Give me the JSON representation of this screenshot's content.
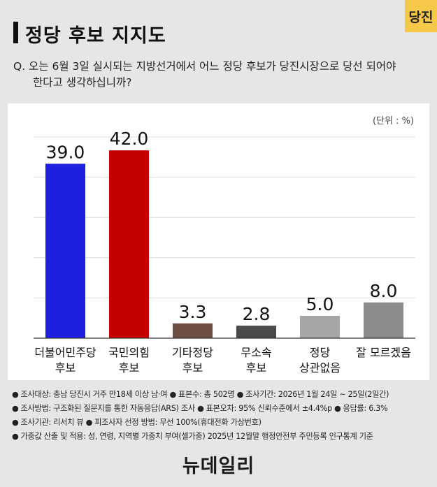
{
  "badge": "당진",
  "title": "정당 후보 지지도",
  "question": {
    "line1": "Q. 오는 6월 3일 실시되는 지방선거에서 어느 정당 후보가 당진시장으로 당선 되어야",
    "line2": "한다고 생각하십니까?"
  },
  "unit_label": "(단위 : %)",
  "chart_data": {
    "type": "bar",
    "categories": [
      [
        "더불어민주당",
        "후보"
      ],
      [
        "국민의힘",
        "후보"
      ],
      [
        "기타정당",
        "후보"
      ],
      [
        "무소속",
        "후보"
      ],
      [
        "정당",
        "상관없음"
      ],
      [
        "잘 모르겠음"
      ]
    ],
    "values": [
      39.0,
      42.0,
      3.3,
      2.8,
      5.0,
      8.0
    ],
    "value_labels": [
      "39.0",
      "42.0",
      "3.3",
      "2.8",
      "5.0",
      "8.0"
    ],
    "colors": [
      "#1f1fe0",
      "#c40000",
      "#6d4e44",
      "#4a4a4a",
      "#a6a6a6",
      "#8c8c8c"
    ],
    "ylim": [
      0,
      45
    ],
    "grid": true,
    "unit": "%"
  },
  "notes": [
    [
      "조사대상: 충남 당진시 거주 만18세 이상 남·여",
      "표본수: 총 502명",
      "조사기간: 2026년 1월 24일 ~ 25일(2일간)"
    ],
    [
      "조사방법: 구조화된 질문지를 통한 자동응답(ARS) 조사",
      "표본오차: 95% 신뢰수준에서 ±4.4%p",
      "응답률: 6.3%"
    ],
    [
      "조사기관: 리서치 뷰",
      "피조사자 선정 방법: 무선 100%(휴대전화 가상번호)"
    ],
    [
      "가중값 산출 및 적용: 성, 연령, 지역별 가중치 부여(셀가중) 2025년 12월말 행정안전부 주민등록 인구통계 기준"
    ]
  ],
  "logo": "뉴데일리"
}
